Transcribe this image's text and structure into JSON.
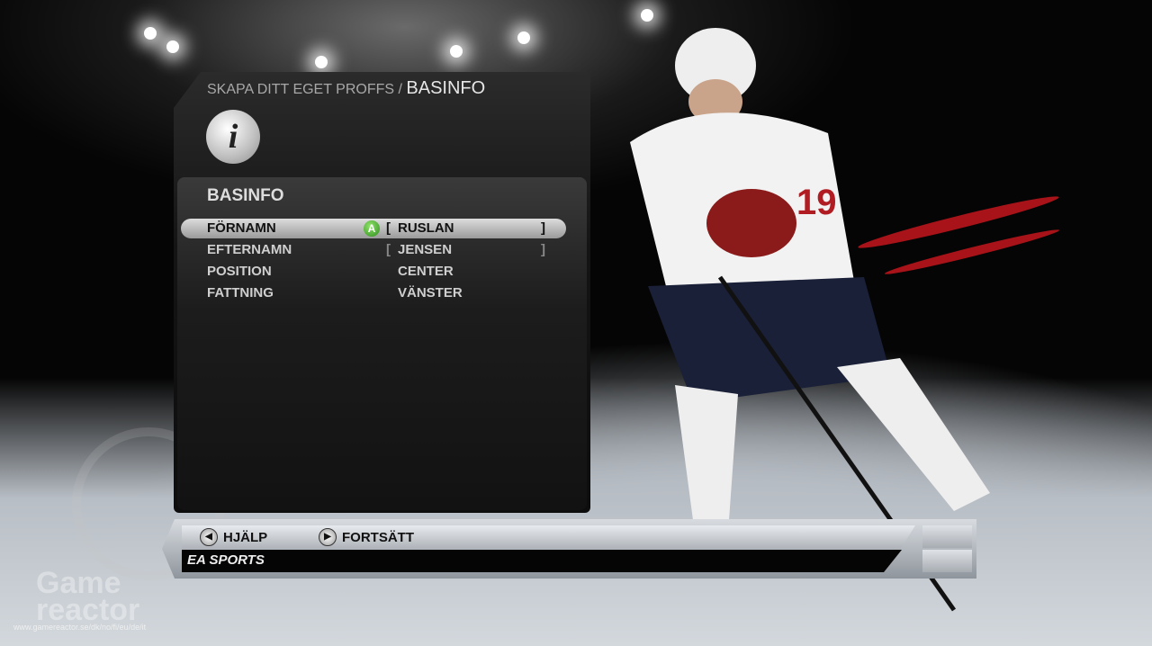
{
  "breadcrumb": {
    "parent": "SKAPA DITT EGET PROFFS /",
    "current": "BASINFO"
  },
  "info_icon": "i",
  "section": {
    "title": "BASINFO",
    "rows": [
      {
        "label": "FÖRNAMN",
        "value": "RUSLAN",
        "bracketed": true,
        "selected": true,
        "button": "A"
      },
      {
        "label": "EFTERNAMN",
        "value": "JENSEN",
        "bracketed": true,
        "selected": false
      },
      {
        "label": "POSITION",
        "value": "CENTER",
        "bracketed": false,
        "selected": false
      },
      {
        "label": "FATTNING",
        "value": "VÄNSTER",
        "bracketed": false,
        "selected": false
      }
    ]
  },
  "footer": {
    "help": "HJÄLP",
    "continue": "FORTSÄTT",
    "brand": "EA SPORTS"
  },
  "bracket_open": "[",
  "bracket_close": "]",
  "background_logo": "EA SPORTS",
  "player": {
    "number": "19"
  },
  "watermark": {
    "name": "Game reactor",
    "url": "www.gamereactor.se/dk/no/fi/eu/de/it"
  },
  "colors": {
    "accent_red": "#c4161c",
    "a_button": "#3fa52a"
  }
}
